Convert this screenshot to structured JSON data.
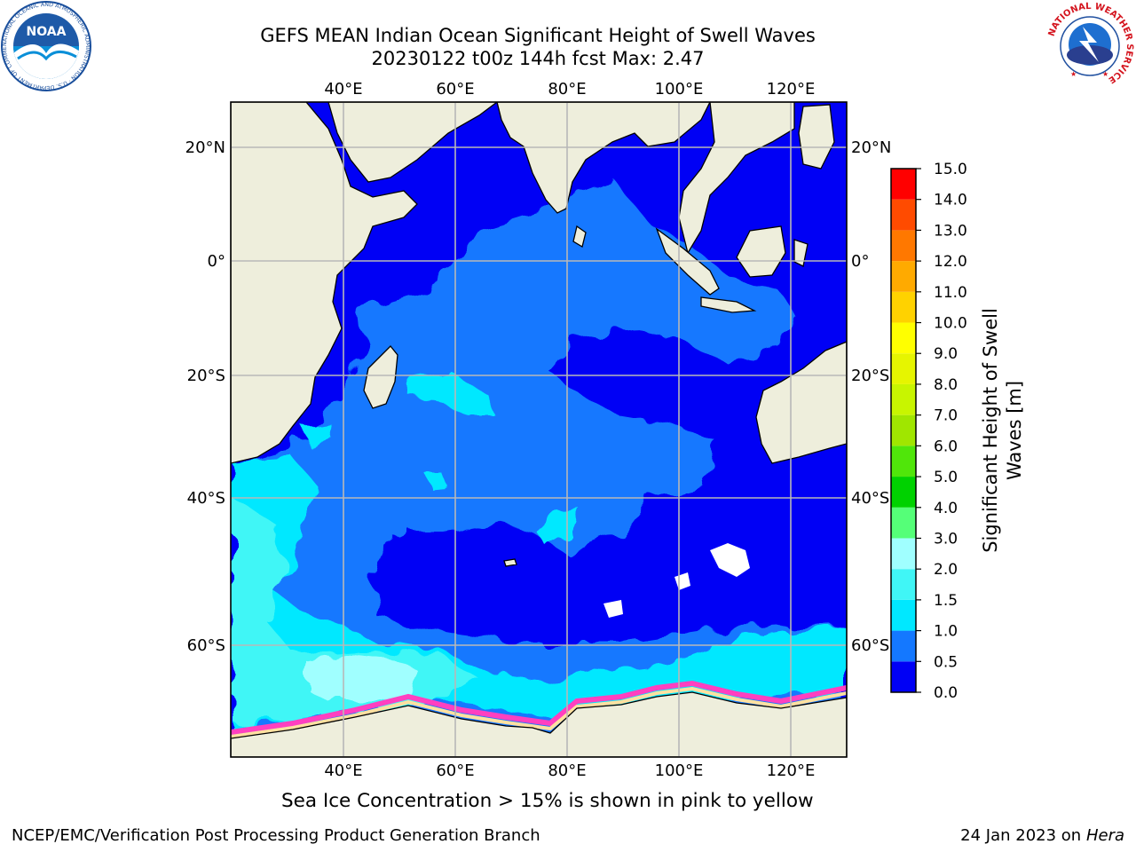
{
  "title_line1": "GEFS MEAN Indian Ocean Significant Height of Swell Waves",
  "title_line2": "20230122 t00z 144h fcst   Max: 2.47",
  "lon_labels": [
    "40°E",
    "60°E",
    "80°E",
    "100°E",
    "120°E"
  ],
  "lat_labels": [
    "20°N",
    "0°",
    "20°S",
    "40°S",
    "60°S"
  ],
  "colorbar": {
    "label": "Significant Height of Swell Waves [m]",
    "label_line1": "Significant Height of Swell",
    "label_line2": "Waves [m]",
    "ticks": [
      "0.0",
      "0.5",
      "1.0",
      "1.5",
      "2.0",
      "3.0",
      "4.0",
      "5.0",
      "6.0",
      "7.0",
      "8.0",
      "9.0",
      "10.0",
      "11.0",
      "12.0",
      "13.0",
      "14.0",
      "15.0"
    ],
    "colors": [
      "#0000f5",
      "#1478ff",
      "#00e8ff",
      "#40f6f6",
      "#a0ffff",
      "#55ff78",
      "#00d200",
      "#50e60a",
      "#a0e600",
      "#c8f500",
      "#e6f500",
      "#ffff00",
      "#ffd200",
      "#ffaa00",
      "#ff7800",
      "#ff4b00",
      "#ff0000"
    ]
  },
  "ice_note": "Sea Ice Concentration > 15% is shown in pink to yellow",
  "footer_left": "NCEP/EMC/Verification Post Processing Product Generation Branch",
  "footer_right_prefix": "24 Jan 2023 on ",
  "footer_right_host": "Hera",
  "logos": {
    "noaa_text": "NOAA",
    "noaa_ring": "NATIONAL OCEANIC AND ATMOSPHERIC ADMINISTRATION · U.S. DEPARTMENT OF COMMERCE",
    "nws_ring": "NATIONAL WEATHER SERVICE"
  },
  "map_colors": {
    "land": "#eeeedc",
    "deep": "#0000f5",
    "mid": "#1478ff",
    "cyan": "#00e8ff",
    "light": "#a0ffff",
    "ice_pink": "#ff40c0",
    "ice_yellow": "#ffe0a0"
  }
}
